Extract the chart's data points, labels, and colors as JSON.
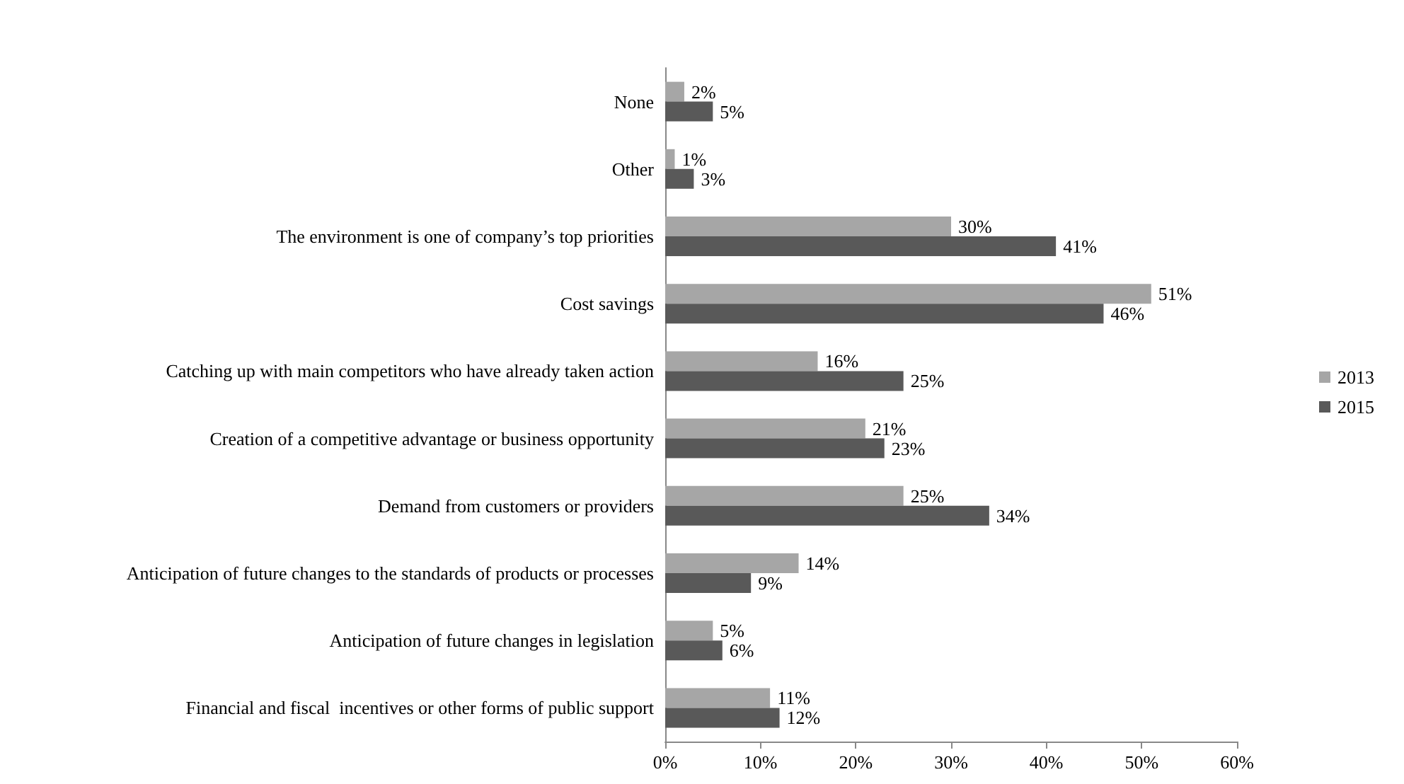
{
  "chart_data": {
    "type": "bar",
    "orientation": "horizontal",
    "categories": [
      "None",
      "Other",
      "The environment is one of company’s top priorities",
      "Cost savings",
      "Catching up with main competitors who have already taken action",
      "Creation of a competitive advantage or business opportunity",
      "Demand from customers or providers",
      "Anticipation of future changes to the standards of products or processes",
      "Anticipation of future changes in legislation",
      "Financial and fiscal  incentives or other forms of public support"
    ],
    "series": [
      {
        "name": "2013",
        "color": "#a6a6a6",
        "values": [
          2,
          1,
          30,
          51,
          16,
          21,
          25,
          14,
          5,
          11
        ],
        "value_labels": [
          "2%",
          "1%",
          "30%",
          "51%",
          "16%",
          "21%",
          "25%",
          "14%",
          "5%",
          "11%"
        ]
      },
      {
        "name": "2015",
        "color": "#595959",
        "values": [
          5,
          3,
          41,
          46,
          25,
          23,
          34,
          9,
          6,
          12
        ],
        "value_labels": [
          "5%",
          "3%",
          "41%",
          "46%",
          "25%",
          "23%",
          "34%",
          "9%",
          "6%",
          "12%"
        ]
      }
    ],
    "xlim": [
      0,
      60
    ],
    "xticks": [
      {
        "value": 0,
        "label": "0%"
      },
      {
        "value": 10,
        "label": "10%"
      },
      {
        "value": 20,
        "label": "20%"
      },
      {
        "value": 30,
        "label": "30%"
      },
      {
        "value": 40,
        "label": "40%"
      },
      {
        "value": 50,
        "label": "50%"
      },
      {
        "value": 60,
        "label": "60%"
      }
    ],
    "grid": false,
    "legend": "right"
  }
}
